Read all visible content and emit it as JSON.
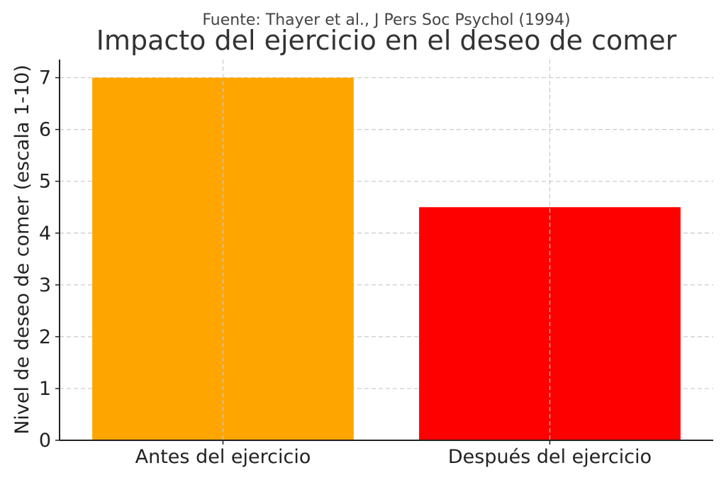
{
  "chart_data": {
    "type": "bar",
    "subtitle": "Fuente: Thayer et al., J Pers Soc Psychol (1994)",
    "title": "Impacto del ejercicio en el deseo de comer",
    "xlabel": "",
    "ylabel": "Nivel de deseo de comer (escala 1-10)",
    "categories": [
      "Antes del ejercicio",
      "Después del ejercicio"
    ],
    "values": [
      7,
      4.5
    ],
    "colors": [
      "#FFA500",
      "#FF0000"
    ],
    "ylim": [
      0,
      7.35
    ],
    "yticks": [
      0,
      1,
      2,
      3,
      4,
      5,
      6,
      7
    ],
    "ytick_labels": [
      "0",
      "1",
      "2",
      "3",
      "4",
      "5",
      "6",
      "7"
    ],
    "grid": true,
    "legend": "none"
  }
}
